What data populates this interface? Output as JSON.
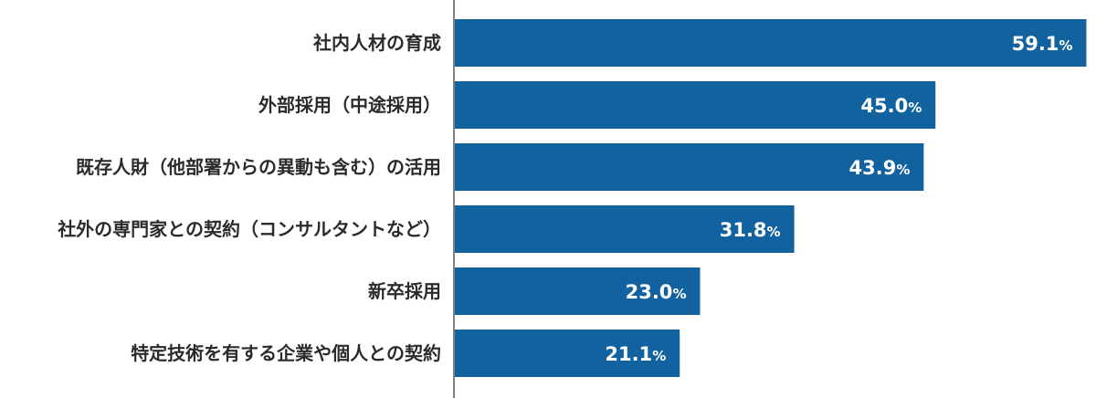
{
  "chart_data": {
    "type": "bar",
    "orientation": "horizontal",
    "categories": [
      "社内人材の育成",
      "外部採用（中途採用）",
      "既存人財（他部署からの異動も含む）の活用",
      "社外の専門家との契約（コンサルタントなど）",
      "新卒採用",
      "特定技術を有する企業や個人との契約"
    ],
    "values": [
      59.1,
      45.0,
      43.9,
      31.8,
      23.0,
      21.1
    ],
    "value_labels": [
      "59.1",
      "45.0",
      "43.9",
      "31.8",
      "23.0",
      "21.1"
    ],
    "unit": "%",
    "xlim": [
      0,
      60
    ],
    "grid": false,
    "legend": "none",
    "bar_color": "#1262a0",
    "axis_color": "#808080"
  }
}
